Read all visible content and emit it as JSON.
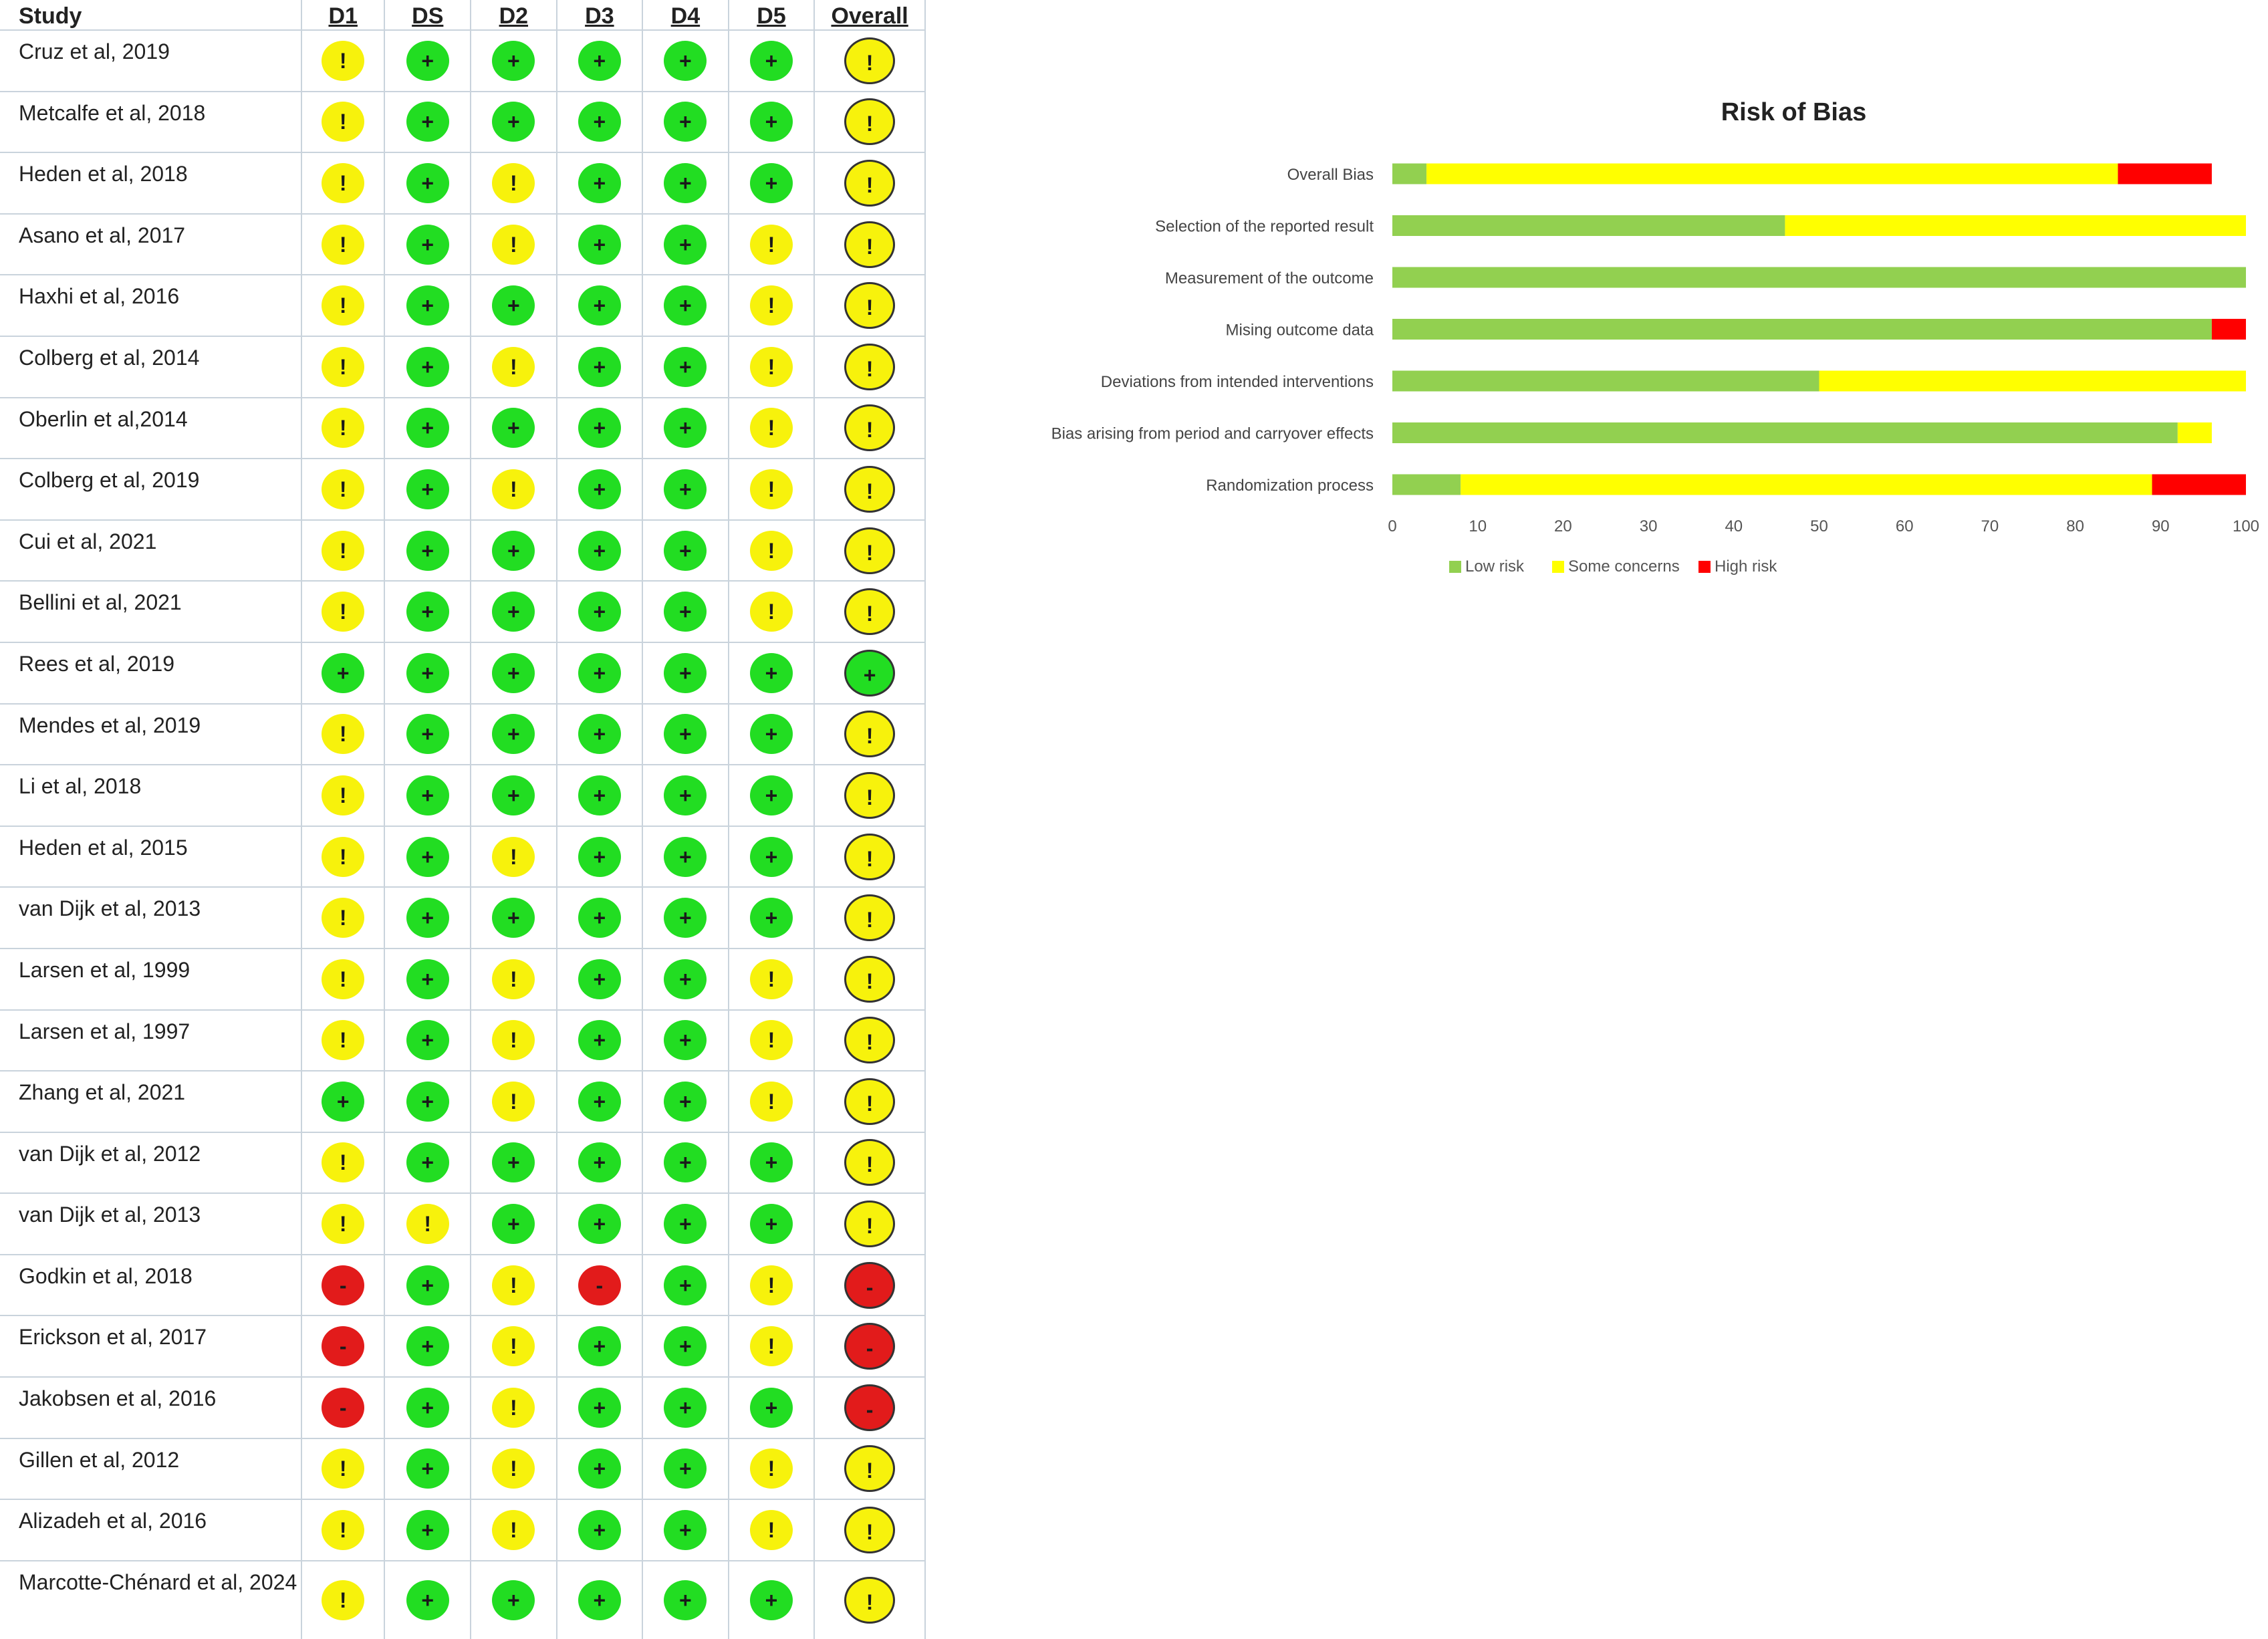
{
  "table": {
    "headers": [
      "Study",
      "D1",
      "DS",
      "D2",
      "D3",
      "D4",
      "D5",
      "Overall"
    ],
    "rows": [
      {
        "study": "Cruz et al, 2019",
        "cells": [
          "!",
          "+",
          "+",
          "+",
          "+",
          "+",
          "!"
        ]
      },
      {
        "study": "Metcalfe et al, 2018",
        "cells": [
          "!",
          "+",
          "+",
          "+",
          "+",
          "+",
          "!"
        ]
      },
      {
        "study": "Heden et al, 2018",
        "cells": [
          "!",
          "+",
          "!",
          "+",
          "+",
          "+",
          "!"
        ]
      },
      {
        "study": "Asano et al, 2017",
        "cells": [
          "!",
          "+",
          "!",
          "+",
          "+",
          "!",
          "!"
        ]
      },
      {
        "study": "Haxhi et al, 2016",
        "cells": [
          "!",
          "+",
          "+",
          "+",
          "+",
          "!",
          "!"
        ]
      },
      {
        "study": "Colberg et al, 2014",
        "cells": [
          "!",
          "+",
          "!",
          "+",
          "+",
          "!",
          "!"
        ]
      },
      {
        "study": "Oberlin et al,2014",
        "cells": [
          "!",
          "+",
          "+",
          "+",
          "+",
          "!",
          "!"
        ]
      },
      {
        "study": "Colberg et al, 2019",
        "cells": [
          "!",
          "+",
          "!",
          "+",
          "+",
          "!",
          "!"
        ]
      },
      {
        "study": "Cui et al, 2021",
        "cells": [
          "!",
          "+",
          "+",
          "+",
          "+",
          "!",
          "!"
        ]
      },
      {
        "study": "Bellini et al, 2021",
        "cells": [
          "!",
          "+",
          "+",
          "+",
          "+",
          "!",
          "!"
        ]
      },
      {
        "study": "Rees et al, 2019",
        "cells": [
          "+",
          "+",
          "+",
          "+",
          "+",
          "+",
          "+"
        ]
      },
      {
        "study": "Mendes et al, 2019",
        "cells": [
          "!",
          "+",
          "+",
          "+",
          "+",
          "+",
          "!"
        ]
      },
      {
        "study": "Li et al, 2018",
        "cells": [
          "!",
          "+",
          "+",
          "+",
          "+",
          "+",
          "!"
        ]
      },
      {
        "study": "Heden et al, 2015",
        "cells": [
          "!",
          "+",
          "!",
          "+",
          "+",
          "+",
          "!"
        ]
      },
      {
        "study": "van Dijk et al, 2013",
        "cells": [
          "!",
          "+",
          "+",
          "+",
          "+",
          "+",
          "!"
        ]
      },
      {
        "study": "Larsen et al, 1999",
        "cells": [
          "!",
          "+",
          "!",
          "+",
          "+",
          "!",
          "!"
        ]
      },
      {
        "study": "Larsen et al, 1997",
        "cells": [
          "!",
          "+",
          "!",
          "+",
          "+",
          "!",
          "!"
        ]
      },
      {
        "study": "Zhang et al, 2021",
        "cells": [
          "+",
          "+",
          "!",
          "+",
          "+",
          "!",
          "!"
        ]
      },
      {
        "study": "van Dijk et al, 2012",
        "cells": [
          "!",
          "+",
          "+",
          "+",
          "+",
          "+",
          "!"
        ]
      },
      {
        "study": "van Dijk et al, 2013",
        "cells": [
          "!",
          "!",
          "+",
          "+",
          "+",
          "+",
          "!"
        ]
      },
      {
        "study": "Godkin et al, 2018",
        "cells": [
          "-",
          "+",
          "!",
          "-",
          "+",
          "!",
          "-"
        ]
      },
      {
        "study": "Erickson et al, 2017",
        "cells": [
          "-",
          "+",
          "!",
          "+",
          "+",
          "!",
          "-"
        ]
      },
      {
        "study": "Jakobsen et al, 2016",
        "cells": [
          "-",
          "+",
          "!",
          "+",
          "+",
          "+",
          "-"
        ]
      },
      {
        "study": "Gillen et al, 2012",
        "cells": [
          "!",
          "+",
          "!",
          "+",
          "+",
          "!",
          "!"
        ]
      },
      {
        "study": "Alizadeh et al, 2016",
        "cells": [
          "!",
          "+",
          "!",
          "+",
          "+",
          "!",
          "!"
        ]
      },
      {
        "study": "Marcotte-Chénard et al, 2024",
        "cells": [
          "!",
          "+",
          "+",
          "+",
          "+",
          "+",
          "!"
        ]
      }
    ]
  },
  "colors": {
    "table_low": "#22dd22",
    "table_some": "#f7f20c",
    "table_high": "#e21b1b",
    "bar_low": "#92d050",
    "bar_some": "#ffff00",
    "bar_high": "#ff0000"
  },
  "chart_data": {
    "type": "bar",
    "orientation": "horizontal",
    "stacked": true,
    "title": "Risk of Bias",
    "categories": [
      "Overall Bias",
      "Selection of the reported result",
      "Measurement of the outcome",
      "Mising outcome data",
      "Deviations from intended interventions",
      "Bias arising from period and carryover effects",
      "Randomization process"
    ],
    "series": [
      {
        "name": "Low risk",
        "color": "#92d050",
        "values": [
          4,
          46,
          100,
          96,
          50,
          92,
          8
        ]
      },
      {
        "name": "Some concerns",
        "color": "#ffff00",
        "values": [
          81,
          54,
          0,
          0,
          50,
          4,
          81
        ]
      },
      {
        "name": "High risk",
        "color": "#ff0000",
        "values": [
          11,
          0,
          0,
          4,
          0,
          0,
          11
        ]
      }
    ],
    "xlim": [
      0,
      100
    ],
    "xticks": [
      "0",
      "10",
      "20",
      "30",
      "40",
      "50",
      "60",
      "70",
      "80",
      "90",
      "100"
    ],
    "grid": false,
    "legend_position": "bottom-left"
  }
}
